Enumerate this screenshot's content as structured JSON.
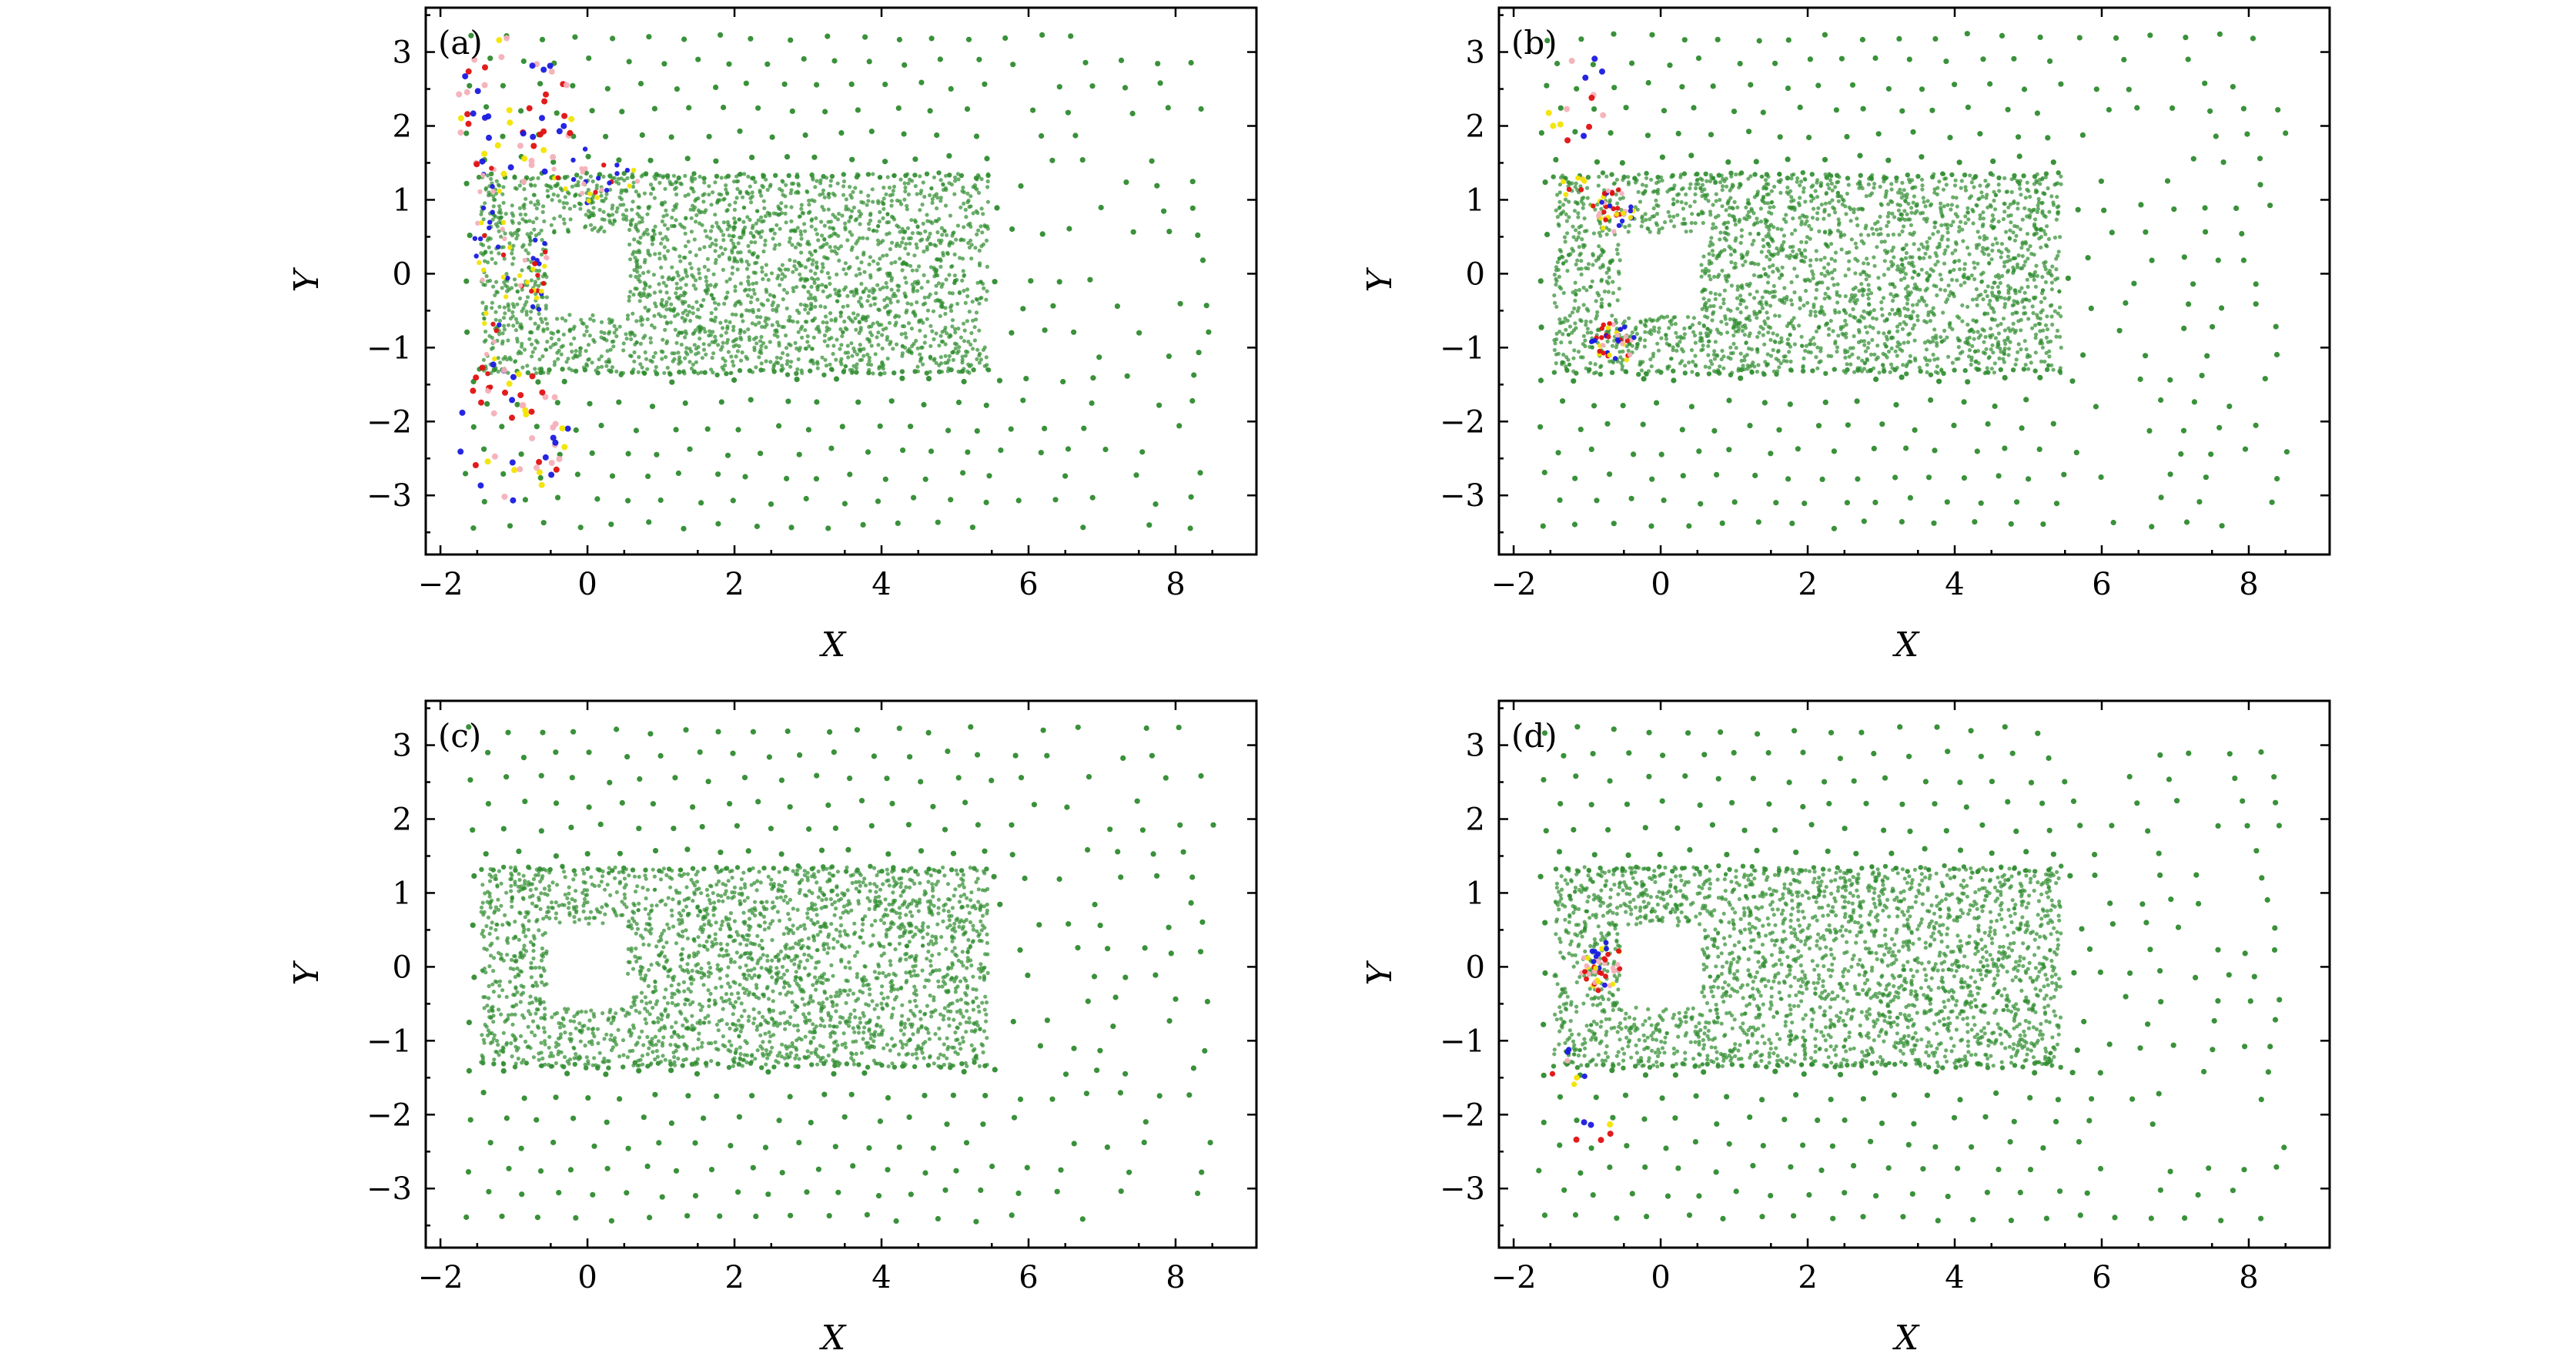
{
  "chart_data": [
    {
      "type": "scatter",
      "panel_label": "(a)",
      "xlabel": "X",
      "ylabel": "Y",
      "xlim": [
        -2.2,
        9.1
      ],
      "ylim": [
        -3.8,
        3.6
      ],
      "xticks": [
        -2,
        0,
        2,
        4,
        6,
        8
      ],
      "xtick_labels": [
        "−2",
        "0",
        "2",
        "4",
        "6",
        "8"
      ],
      "yticks": [
        -3,
        -2,
        -1,
        0,
        1,
        2,
        3
      ],
      "ytick_labels": [
        "−3",
        "−2",
        "−1",
        "0",
        "1",
        "2",
        "3"
      ],
      "obstacle": {
        "x": [
          -0.5,
          0.5
        ],
        "y": [
          -0.5,
          0.5
        ]
      },
      "colors": {
        "fluid": "#2e8b2e",
        "mixed_red": "#e01010",
        "mixed_blue": "#1a1ae0",
        "mixed_yellow": "#f2e400",
        "mixed_pink": "#f4b0b8"
      },
      "mixing_region": "front-and-sides"
    },
    {
      "type": "scatter",
      "panel_label": "(b)",
      "xlabel": "X",
      "ylabel": "Y",
      "xlim": [
        -2.2,
        9.1
      ],
      "ylim": [
        -3.8,
        3.6
      ],
      "xticks": [
        -2,
        0,
        2,
        4,
        6,
        8
      ],
      "xtick_labels": [
        "−2",
        "0",
        "2",
        "4",
        "6",
        "8"
      ],
      "yticks": [
        -3,
        -2,
        -1,
        0,
        1,
        2,
        3
      ],
      "ytick_labels": [
        "−3",
        "−2",
        "−1",
        "0",
        "1",
        "2",
        "3"
      ],
      "obstacle": {
        "x": [
          -0.5,
          0.5
        ],
        "y": [
          -0.5,
          0.5
        ]
      },
      "colors": {
        "fluid": "#2e8b2e",
        "mixed_red": "#e01010",
        "mixed_blue": "#1a1ae0",
        "mixed_yellow": "#f2e400",
        "mixed_pink": "#f4b0b8"
      },
      "mixing_region": "upper-and-lower-corners"
    },
    {
      "type": "scatter",
      "panel_label": "(c)",
      "xlabel": "X",
      "ylabel": "Y",
      "xlim": [
        -2.2,
        9.1
      ],
      "ylim": [
        -3.8,
        3.6
      ],
      "xticks": [
        -2,
        0,
        2,
        4,
        6,
        8
      ],
      "xtick_labels": [
        "−2",
        "0",
        "2",
        "4",
        "6",
        "8"
      ],
      "yticks": [
        -3,
        -2,
        -1,
        0,
        1,
        2,
        3
      ],
      "ytick_labels": [
        "−3",
        "−2",
        "−1",
        "0",
        "1",
        "2",
        "3"
      ],
      "obstacle": {
        "x": [
          -0.5,
          0.5
        ],
        "y": [
          -0.5,
          0.5
        ]
      },
      "colors": {
        "fluid": "#2e8b2e"
      },
      "mixing_region": "none"
    },
    {
      "type": "scatter",
      "panel_label": "(d)",
      "xlabel": "X",
      "ylabel": "Y",
      "xlim": [
        -2.2,
        9.1
      ],
      "ylim": [
        -3.8,
        3.6
      ],
      "xticks": [
        -2,
        0,
        2,
        4,
        6,
        8
      ],
      "xtick_labels": [
        "−2",
        "0",
        "2",
        "4",
        "6",
        "8"
      ],
      "yticks": [
        -3,
        -2,
        -1,
        0,
        1,
        2,
        3
      ],
      "ytick_labels": [
        "−3",
        "−2",
        "−1",
        "0",
        "1",
        "2",
        "3"
      ],
      "obstacle": {
        "x": [
          -0.5,
          0.5
        ],
        "y": [
          -0.5,
          0.5
        ]
      },
      "colors": {
        "fluid": "#2e8b2e",
        "mixed_red": "#e01010",
        "mixed_blue": "#1a1ae0",
        "mixed_yellow": "#f2e400",
        "mixed_pink": "#f4b0b8"
      },
      "mixing_region": "front-face"
    }
  ]
}
